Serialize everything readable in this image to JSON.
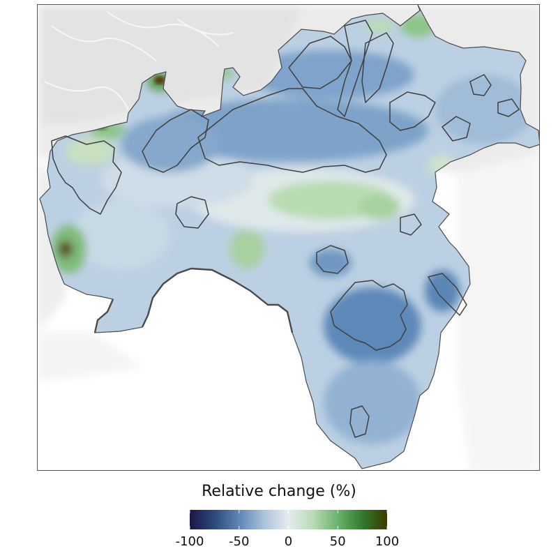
{
  "legend": {
    "title": "Relative change (%)",
    "ticks": [
      "-100",
      "-50",
      "0",
      "50",
      "100"
    ],
    "tick_values": [
      -100,
      -50,
      0,
      50,
      100
    ],
    "range": [
      -100,
      100
    ],
    "colormap": [
      "#1b1546",
      "#2c4a7a",
      "#5f86b6",
      "#aac2da",
      "#e6ecef",
      "#b9dbb3",
      "#6bb26c",
      "#327a2c",
      "#3b3a00"
    ]
  },
  "map": {
    "background_relief_color": "#eeeeee",
    "region_fill_colors": [
      "#bcd0e3",
      "#8fb0d2",
      "#5a86b6",
      "#e3ebef",
      "#b7d9b2"
    ],
    "outline_color": "#4a4a4a"
  }
}
